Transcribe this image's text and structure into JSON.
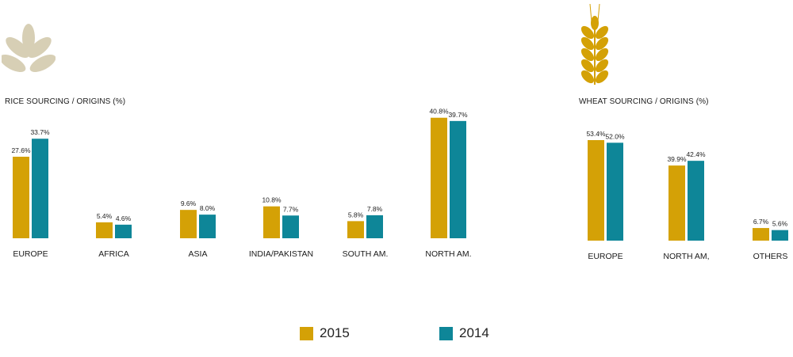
{
  "colors": {
    "s2015": "#D4A106",
    "s2014": "#0E8698",
    "rice_icon": "#D7CFB5",
    "wheat_icon": "#D4A106"
  },
  "icons": {
    "rice": "rice-grain-icon",
    "wheat": "wheat-stalk-icon"
  },
  "legend": {
    "s2015": "2015",
    "s2014": "2014"
  },
  "chart_data": [
    {
      "type": "bar",
      "title": "RICE SOURCING / ORIGINS (%)",
      "categories": [
        "EUROPE",
        "AFRICA",
        "ASIA",
        "INDIA/PAKISTAN",
        "SOUTH AM.",
        "NORTH AM."
      ],
      "series": [
        {
          "name": "2015",
          "values": [
            27.6,
            5.4,
            9.6,
            10.8,
            5.8,
            40.8
          ],
          "labels": [
            "27.6%",
            "5.4%",
            "9.6%",
            "10.8%",
            "5.8%",
            "40.8%"
          ]
        },
        {
          "name": "2014",
          "values": [
            33.7,
            4.6,
            8.0,
            7.7,
            7.8,
            39.7
          ],
          "labels": [
            "33.7%",
            "4.6%",
            "8.0%",
            "7.7%",
            "7.8%",
            "39.7%"
          ]
        }
      ],
      "ylim": [
        0,
        41
      ],
      "grid": false,
      "legend": "bottom"
    },
    {
      "type": "bar",
      "title": "WHEAT SOURCING / ORIGINS (%)",
      "categories": [
        "EUROPE",
        "NORTH AM,",
        "OTHERS"
      ],
      "series": [
        {
          "name": "2015",
          "values": [
            53.4,
            39.9,
            6.7
          ],
          "labels": [
            "53.4%",
            "39.9%",
            "6.7%"
          ]
        },
        {
          "name": "2014",
          "values": [
            52.0,
            42.4,
            5.6
          ],
          "labels": [
            "52.0%",
            "42.4%",
            "5.6%"
          ]
        }
      ],
      "ylim": [
        0,
        53.4
      ],
      "grid": false,
      "legend": "bottom"
    }
  ]
}
